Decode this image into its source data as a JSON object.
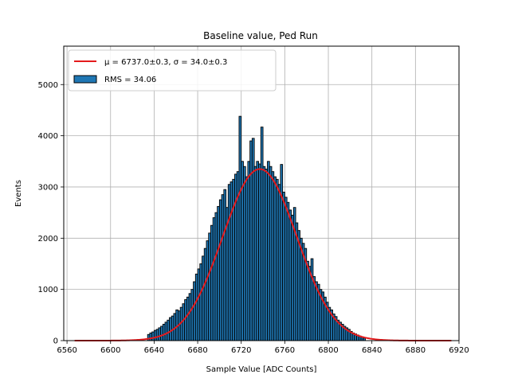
{
  "chart_data": {
    "type": "histogram",
    "title": "Baseline value, Ped Run",
    "xlabel": "Sample Value [ADC Counts]",
    "ylabel": "Events",
    "xlim": [
      6557,
      6920
    ],
    "ylim": [
      0,
      5750
    ],
    "xticks": [
      6560,
      6600,
      6640,
      6680,
      6720,
      6760,
      6800,
      6840,
      6880,
      6920
    ],
    "yticks": [
      0,
      1000,
      2000,
      3000,
      4000,
      5000
    ],
    "grid": true,
    "legend_position": "top-left",
    "legend": {
      "fit_label": "μ = 6737.0±0.3, σ = 34.0±0.3",
      "hist_label": "RMS = 34.06"
    },
    "fit": {
      "type": "gaussian",
      "mu": 6737.0,
      "sigma": 34.0,
      "amplitude": 3350,
      "x_range": [
        6567,
        6913
      ],
      "color": "#e41a1c"
    },
    "histogram": {
      "bin_width": 2,
      "bar_color": "#1f77b4",
      "edge_color": "#000000",
      "bins": [
        [
          6634,
          120
        ],
        [
          6636,
          150
        ],
        [
          6638,
          170
        ],
        [
          6640,
          200
        ],
        [
          6642,
          220
        ],
        [
          6644,
          250
        ],
        [
          6646,
          280
        ],
        [
          6648,
          320
        ],
        [
          6650,
          360
        ],
        [
          6652,
          400
        ],
        [
          6654,
          450
        ],
        [
          6656,
          480
        ],
        [
          6658,
          530
        ],
        [
          6660,
          600
        ],
        [
          6662,
          580
        ],
        [
          6664,
          650
        ],
        [
          6666,
          720
        ],
        [
          6668,
          800
        ],
        [
          6670,
          850
        ],
        [
          6672,
          920
        ],
        [
          6674,
          1000
        ],
        [
          6676,
          1150
        ],
        [
          6678,
          1300
        ],
        [
          6680,
          1400
        ],
        [
          6682,
          1500
        ],
        [
          6684,
          1650
        ],
        [
          6686,
          1800
        ],
        [
          6688,
          1950
        ],
        [
          6690,
          2100
        ],
        [
          6692,
          2250
        ],
        [
          6694,
          2400
        ],
        [
          6696,
          2500
        ],
        [
          6698,
          2620
        ],
        [
          6700,
          2750
        ],
        [
          6702,
          2850
        ],
        [
          6704,
          2950
        ],
        [
          6706,
          2600
        ],
        [
          6708,
          3050
        ],
        [
          6710,
          3100
        ],
        [
          6712,
          3150
        ],
        [
          6714,
          3250
        ],
        [
          6716,
          3300
        ],
        [
          6718,
          4380
        ],
        [
          6720,
          3500
        ],
        [
          6722,
          3400
        ],
        [
          6724,
          3200
        ],
        [
          6726,
          3500
        ],
        [
          6728,
          3900
        ],
        [
          6730,
          3950
        ],
        [
          6732,
          3400
        ],
        [
          6734,
          3500
        ],
        [
          6736,
          3450
        ],
        [
          6738,
          4170
        ],
        [
          6740,
          3400
        ],
        [
          6742,
          3350
        ],
        [
          6744,
          3500
        ],
        [
          6746,
          3400
        ],
        [
          6748,
          3300
        ],
        [
          6750,
          3200
        ],
        [
          6752,
          3150
        ],
        [
          6754,
          3050
        ],
        [
          6756,
          3440
        ],
        [
          6758,
          2900
        ],
        [
          6760,
          2800
        ],
        [
          6762,
          2700
        ],
        [
          6764,
          2550
        ],
        [
          6766,
          2450
        ],
        [
          6768,
          2600
        ],
        [
          6770,
          2300
        ],
        [
          6772,
          2150
        ],
        [
          6774,
          2000
        ],
        [
          6776,
          1900
        ],
        [
          6778,
          1800
        ],
        [
          6780,
          1550
        ],
        [
          6782,
          1450
        ],
        [
          6784,
          1600
        ],
        [
          6786,
          1250
        ],
        [
          6788,
          1150
        ],
        [
          6790,
          1100
        ],
        [
          6792,
          1000
        ],
        [
          6794,
          950
        ],
        [
          6796,
          850
        ],
        [
          6798,
          750
        ],
        [
          6800,
          650
        ],
        [
          6802,
          600
        ],
        [
          6804,
          520
        ],
        [
          6806,
          470
        ],
        [
          6808,
          400
        ],
        [
          6810,
          360
        ],
        [
          6812,
          320
        ],
        [
          6814,
          280
        ],
        [
          6816,
          250
        ],
        [
          6818,
          220
        ],
        [
          6820,
          180
        ],
        [
          6822,
          150
        ],
        [
          6824,
          130
        ],
        [
          6826,
          110
        ],
        [
          6828,
          90
        ],
        [
          6830,
          70
        ],
        [
          6832,
          50
        ]
      ]
    }
  }
}
